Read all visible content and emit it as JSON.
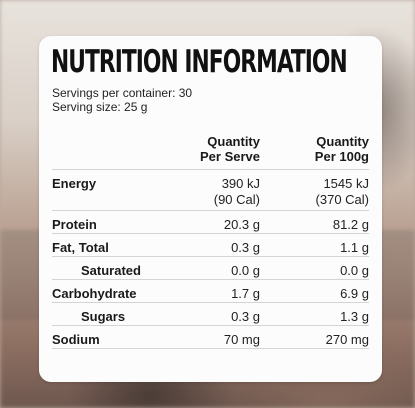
{
  "title": "NUTRITION INFORMATION",
  "servings_per_container": "Servings per container: 30",
  "serving_size": "Serving size: 25 g",
  "columns": {
    "per_serve": [
      "Quantity",
      "Per Serve"
    ],
    "per_100g": [
      "Quantity",
      "Per 100g"
    ]
  },
  "rows": [
    {
      "name": "Energy",
      "per_serve": [
        "390 kJ",
        "(90 Cal)"
      ],
      "per_100g": [
        "1545 kJ",
        "(370 Cal)"
      ]
    },
    {
      "name": "Protein",
      "per_serve": [
        "20.3 g"
      ],
      "per_100g": [
        "81.2 g"
      ]
    },
    {
      "name": "Fat, Total",
      "per_serve": [
        "0.3 g"
      ],
      "per_100g": [
        "1.1 g"
      ]
    },
    {
      "name": "Saturated",
      "per_serve": [
        "0.0 g"
      ],
      "per_100g": [
        "0.0 g"
      ]
    },
    {
      "name": "Carbohydrate",
      "per_serve": [
        "1.7 g"
      ],
      "per_100g": [
        "6.9 g"
      ]
    },
    {
      "name": "Sugars",
      "per_serve": [
        "0.3 g"
      ],
      "per_100g": [
        "1.3 g"
      ]
    },
    {
      "name": "Sodium",
      "per_serve": [
        "70 mg"
      ],
      "per_100g": [
        "270 mg"
      ]
    }
  ]
}
